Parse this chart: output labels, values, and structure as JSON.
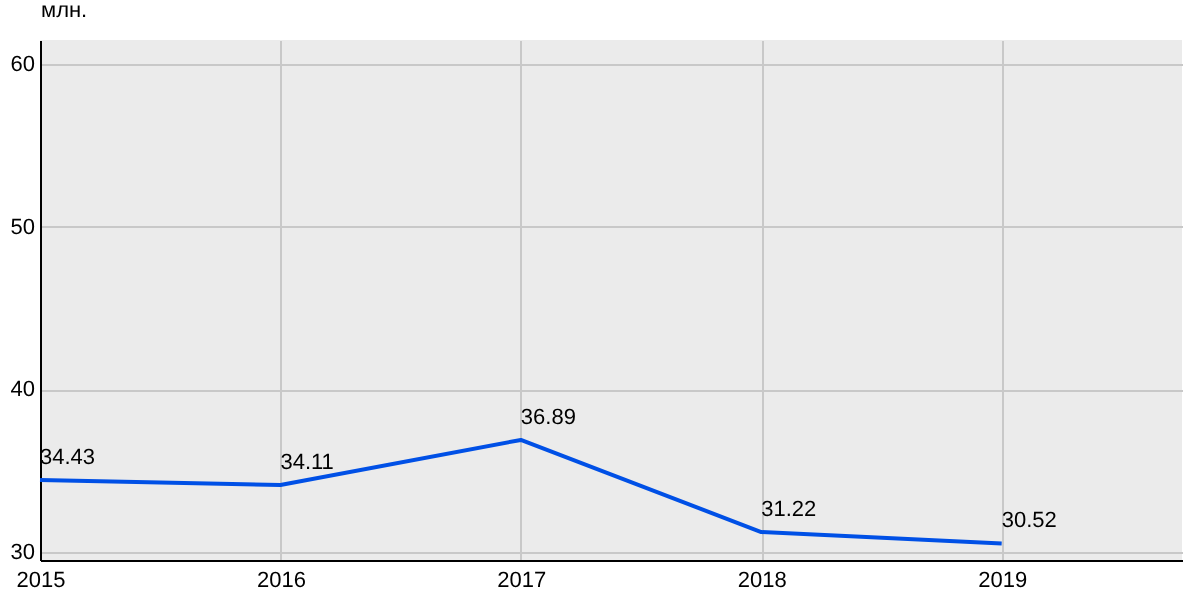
{
  "chart_data": {
    "type": "line",
    "ylabel": "млн.",
    "x": [
      2015,
      2016,
      2017,
      2018,
      2019
    ],
    "series": [
      {
        "color": "#0050e6",
        "values": [
          34.43,
          34.11,
          36.89,
          31.22,
          30.52
        ]
      }
    ],
    "xlim": [
      2015,
      2019.75
    ],
    "ylim": [
      29.5,
      61.5
    ],
    "xticks": [
      2015,
      2016,
      2017,
      2018,
      2019
    ],
    "yticks": [
      30,
      40,
      50,
      60
    ],
    "grid": true,
    "data_labels": true,
    "marker": "none",
    "line_style": "solid",
    "legend": false
  }
}
